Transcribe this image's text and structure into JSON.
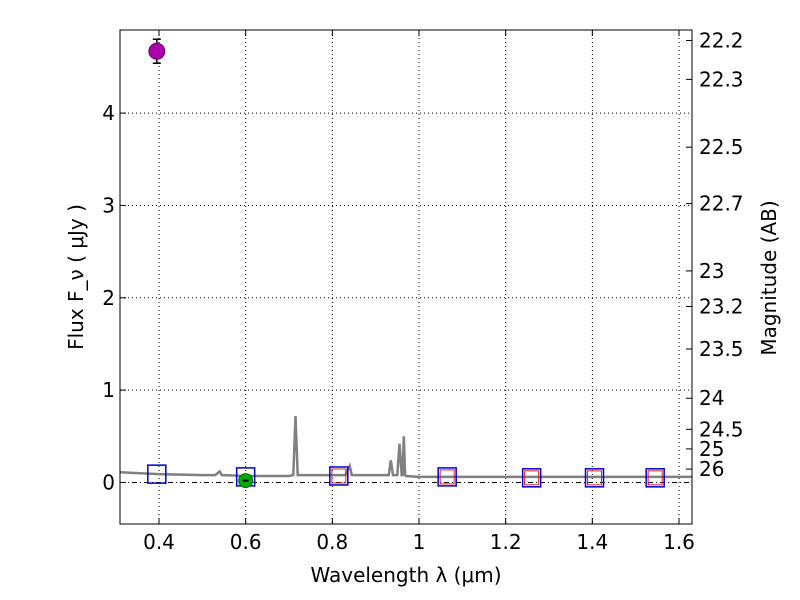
{
  "chart_data": {
    "type": "scatter",
    "xlabel": "Wavelength  λ (μm)",
    "ylabel": "Flux  F_ν  ( μJy )",
    "ylabel_right": "Magnitude (AB)",
    "xlim": [
      0.31,
      1.63
    ],
    "ylim": [
      -0.45,
      4.9
    ],
    "x_ticks": [
      0.4,
      0.6,
      0.8,
      1.0,
      1.2,
      1.4,
      1.6
    ],
    "x_tick_labels": [
      "0.4",
      "0.6",
      "0.8",
      "1",
      "1.2",
      "1.4",
      "1.6"
    ],
    "y_ticks": [
      0,
      1,
      2,
      3,
      4
    ],
    "y_tick_labels": [
      "0",
      "1",
      "2",
      "3",
      "4"
    ],
    "mag_ticks": [
      22.2,
      22.3,
      22.5,
      22.7,
      23,
      23.2,
      23.5,
      24,
      24.5,
      25,
      26
    ],
    "mag_tick_labels": [
      "22.2",
      "22.3",
      "22.5",
      "22.7",
      "23",
      "23.2",
      "23.5",
      "24",
      "24.5",
      "25",
      "26"
    ],
    "grid": true,
    "colors": {
      "spectrum": "#808080",
      "detection": "#aa00aa",
      "green_point": "#00aa00",
      "model_square": "#0000cc",
      "observed_square": "#dd2222"
    },
    "spectrum": {
      "name": "",
      "x": [
        0.31,
        0.4,
        0.5,
        0.53,
        0.54,
        0.545,
        0.55,
        0.6,
        0.65,
        0.7,
        0.71,
        0.715,
        0.72,
        0.725,
        0.73,
        0.76,
        0.8,
        0.83,
        0.84,
        0.845,
        0.85,
        0.93,
        0.935,
        0.94,
        0.945,
        0.95,
        0.955,
        0.96,
        0.962,
        0.965,
        0.968,
        0.97,
        1.0,
        1.1,
        1.2,
        1.3,
        1.4,
        1.5,
        1.63
      ],
      "y": [
        0.11,
        0.09,
        0.08,
        0.08,
        0.12,
        0.08,
        0.08,
        0.07,
        0.07,
        0.07,
        0.08,
        0.72,
        0.08,
        0.08,
        0.08,
        0.08,
        0.08,
        0.08,
        0.18,
        0.08,
        0.08,
        0.08,
        0.24,
        0.08,
        0.08,
        0.08,
        0.42,
        0.08,
        0.08,
        0.5,
        0.08,
        0.07,
        0.06,
        0.06,
        0.06,
        0.06,
        0.06,
        0.06,
        0.06
      ]
    },
    "detections": [
      {
        "x": 0.395,
        "y": 4.67,
        "yerr": 0.13
      }
    ],
    "green_points": [
      {
        "x": 0.6,
        "y": 0.02
      }
    ],
    "model_squares": [
      {
        "x": 0.395,
        "y": 0.09
      },
      {
        "x": 0.6,
        "y": 0.06
      },
      {
        "x": 0.815,
        "y": 0.07
      },
      {
        "x": 1.065,
        "y": 0.06
      },
      {
        "x": 1.26,
        "y": 0.05
      },
      {
        "x": 1.405,
        "y": 0.05
      },
      {
        "x": 1.545,
        "y": 0.05
      }
    ],
    "observed_squares": [
      {
        "x": 0.815,
        "y": 0.07
      },
      {
        "x": 1.065,
        "y": 0.06
      },
      {
        "x": 1.26,
        "y": 0.05
      },
      {
        "x": 1.405,
        "y": 0.05
      },
      {
        "x": 1.545,
        "y": 0.05
      }
    ],
    "zero_line": 0
  }
}
